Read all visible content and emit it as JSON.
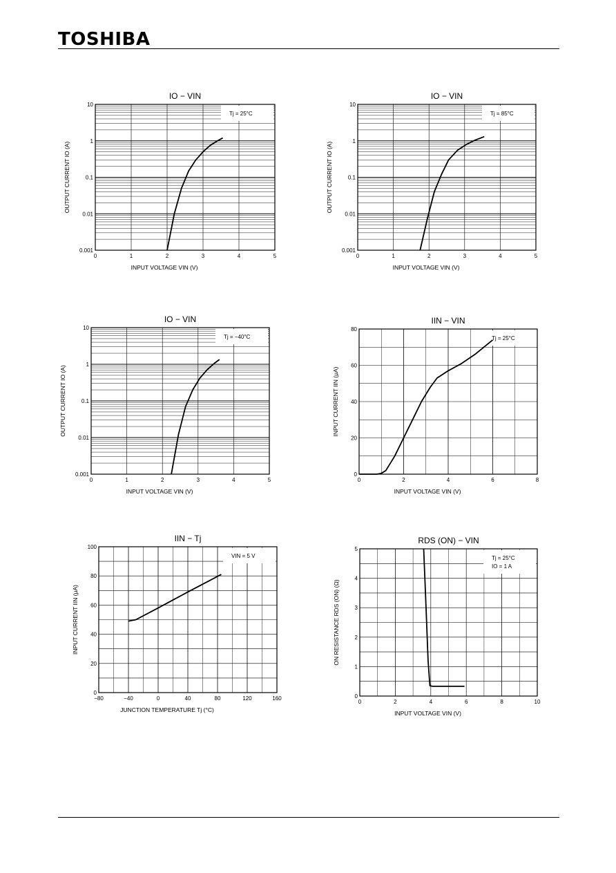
{
  "header": {
    "brand": "TOSHIBA"
  },
  "chart_data": [
    {
      "type": "line",
      "title": "IO − VIN",
      "xlabel": "INPUT VOLTAGE   VIN   (V)",
      "ylabel": "OUTPUT CURRENT IO   (A)",
      "annotation": "Tj = 25°C",
      "xlim": [
        0,
        5
      ],
      "ylim": [
        0.001,
        10
      ],
      "yscale": "log",
      "xticks": [
        "0",
        "1",
        "2",
        "3",
        "4",
        "5"
      ],
      "yticks": [
        "0.001",
        "0.01",
        "0.1",
        "1",
        "10"
      ],
      "series": [
        {
          "x": [
            2.0,
            2.2,
            2.4,
            2.6,
            2.8,
            3.0,
            3.2,
            3.4,
            3.55
          ],
          "y": [
            0.001,
            0.01,
            0.05,
            0.15,
            0.3,
            0.5,
            0.75,
            1.0,
            1.2
          ]
        }
      ]
    },
    {
      "type": "line",
      "title": "IO − VIN",
      "xlabel": "INPUT VOLTAGE   VIN   (V)",
      "ylabel": "OUTPUT CURRENT IO   (A)",
      "annotation": "Tj = 85°C",
      "xlim": [
        0,
        5
      ],
      "ylim": [
        0.001,
        10
      ],
      "yscale": "log",
      "xticks": [
        "0",
        "1",
        "2",
        "3",
        "4",
        "5"
      ],
      "yticks": [
        "0.001",
        "0.01",
        "0.1",
        "1",
        "10"
      ],
      "series": [
        {
          "x": [
            1.75,
            1.95,
            2.15,
            2.35,
            2.55,
            2.8,
            3.05,
            3.3,
            3.55
          ],
          "y": [
            0.001,
            0.007,
            0.04,
            0.12,
            0.3,
            0.55,
            0.8,
            1.05,
            1.3
          ]
        }
      ]
    },
    {
      "type": "line",
      "title": "IO − VIN",
      "xlabel": "INPUT VOLTAGE   VIN   (V)",
      "ylabel": "OUTPUT CURRENT IO   (A)",
      "annotation": "Tj = −40°C",
      "xlim": [
        0,
        5
      ],
      "ylim": [
        0.001,
        10
      ],
      "yscale": "log",
      "xticks": [
        "0",
        "1",
        "2",
        "3",
        "4",
        "5"
      ],
      "yticks": [
        "0.001",
        "0.01",
        "0.1",
        "1",
        "10"
      ],
      "series": [
        {
          "x": [
            2.25,
            2.45,
            2.65,
            2.85,
            3.05,
            3.25,
            3.45,
            3.6
          ],
          "y": [
            0.001,
            0.012,
            0.07,
            0.2,
            0.42,
            0.7,
            1.05,
            1.35
          ]
        }
      ]
    },
    {
      "type": "line",
      "title": "IIN − VIN",
      "xlabel": "INPUT VOLTAGE   VIN   (V)",
      "ylabel": "INPUT CURRENT IIN   (μA)",
      "annotation": "Tj = 25°C",
      "xlim": [
        0,
        8
      ],
      "ylim": [
        0,
        80
      ],
      "xticks": [
        "0",
        "2",
        "4",
        "6",
        "8"
      ],
      "yticks": [
        "0",
        "20",
        "40",
        "60",
        "80"
      ],
      "series": [
        {
          "x": [
            0,
            0.8,
            1.0,
            1.2,
            1.6,
            2.0,
            2.4,
            2.8,
            3.2,
            3.5,
            4.0,
            4.6,
            5.2,
            5.6,
            6.0
          ],
          "y": [
            0,
            0,
            0.5,
            2,
            10,
            20,
            30,
            40,
            48,
            53,
            57,
            61,
            66,
            70,
            74
          ]
        }
      ]
    },
    {
      "type": "line",
      "title": "IIN − Tj",
      "xlabel": "JUNCTION TEMPERATURE   Tj   (°C)",
      "ylabel": "INPUT CURRENT IIN   (μA)",
      "annotation": "VIN = 5 V",
      "xlim": [
        -80,
        160
      ],
      "ylim": [
        0,
        100
      ],
      "xticks": [
        "−80",
        "−40",
        "0",
        "40",
        "80",
        "120",
        "160"
      ],
      "yticks": [
        "0",
        "20",
        "40",
        "60",
        "80",
        "100"
      ],
      "series": [
        {
          "x": [
            -40,
            -30,
            0,
            40,
            85
          ],
          "y": [
            49,
            50,
            58,
            69,
            81
          ]
        }
      ]
    },
    {
      "type": "line",
      "title": "RDS (ON)  −  VIN",
      "xlabel": "INPUT VOLTAGE   VIN   (V)",
      "ylabel": "ON RESISTANCE RDS (ON)   (Ω)",
      "annotation": "Tj = 25°C",
      "annotation2": "IO = 1 A",
      "xlim": [
        0,
        10
      ],
      "ylim": [
        0,
        5
      ],
      "xticks": [
        "0",
        "2",
        "4",
        "6",
        "8",
        "10"
      ],
      "yticks": [
        "0",
        "1",
        "2",
        "3",
        "4",
        "5"
      ],
      "series": [
        {
          "x": [
            3.6,
            3.7,
            3.85,
            3.95,
            4.1,
            5,
            5.9
          ],
          "y": [
            5,
            3.5,
            1.2,
            0.35,
            0.33,
            0.33,
            0.33
          ]
        }
      ]
    }
  ]
}
